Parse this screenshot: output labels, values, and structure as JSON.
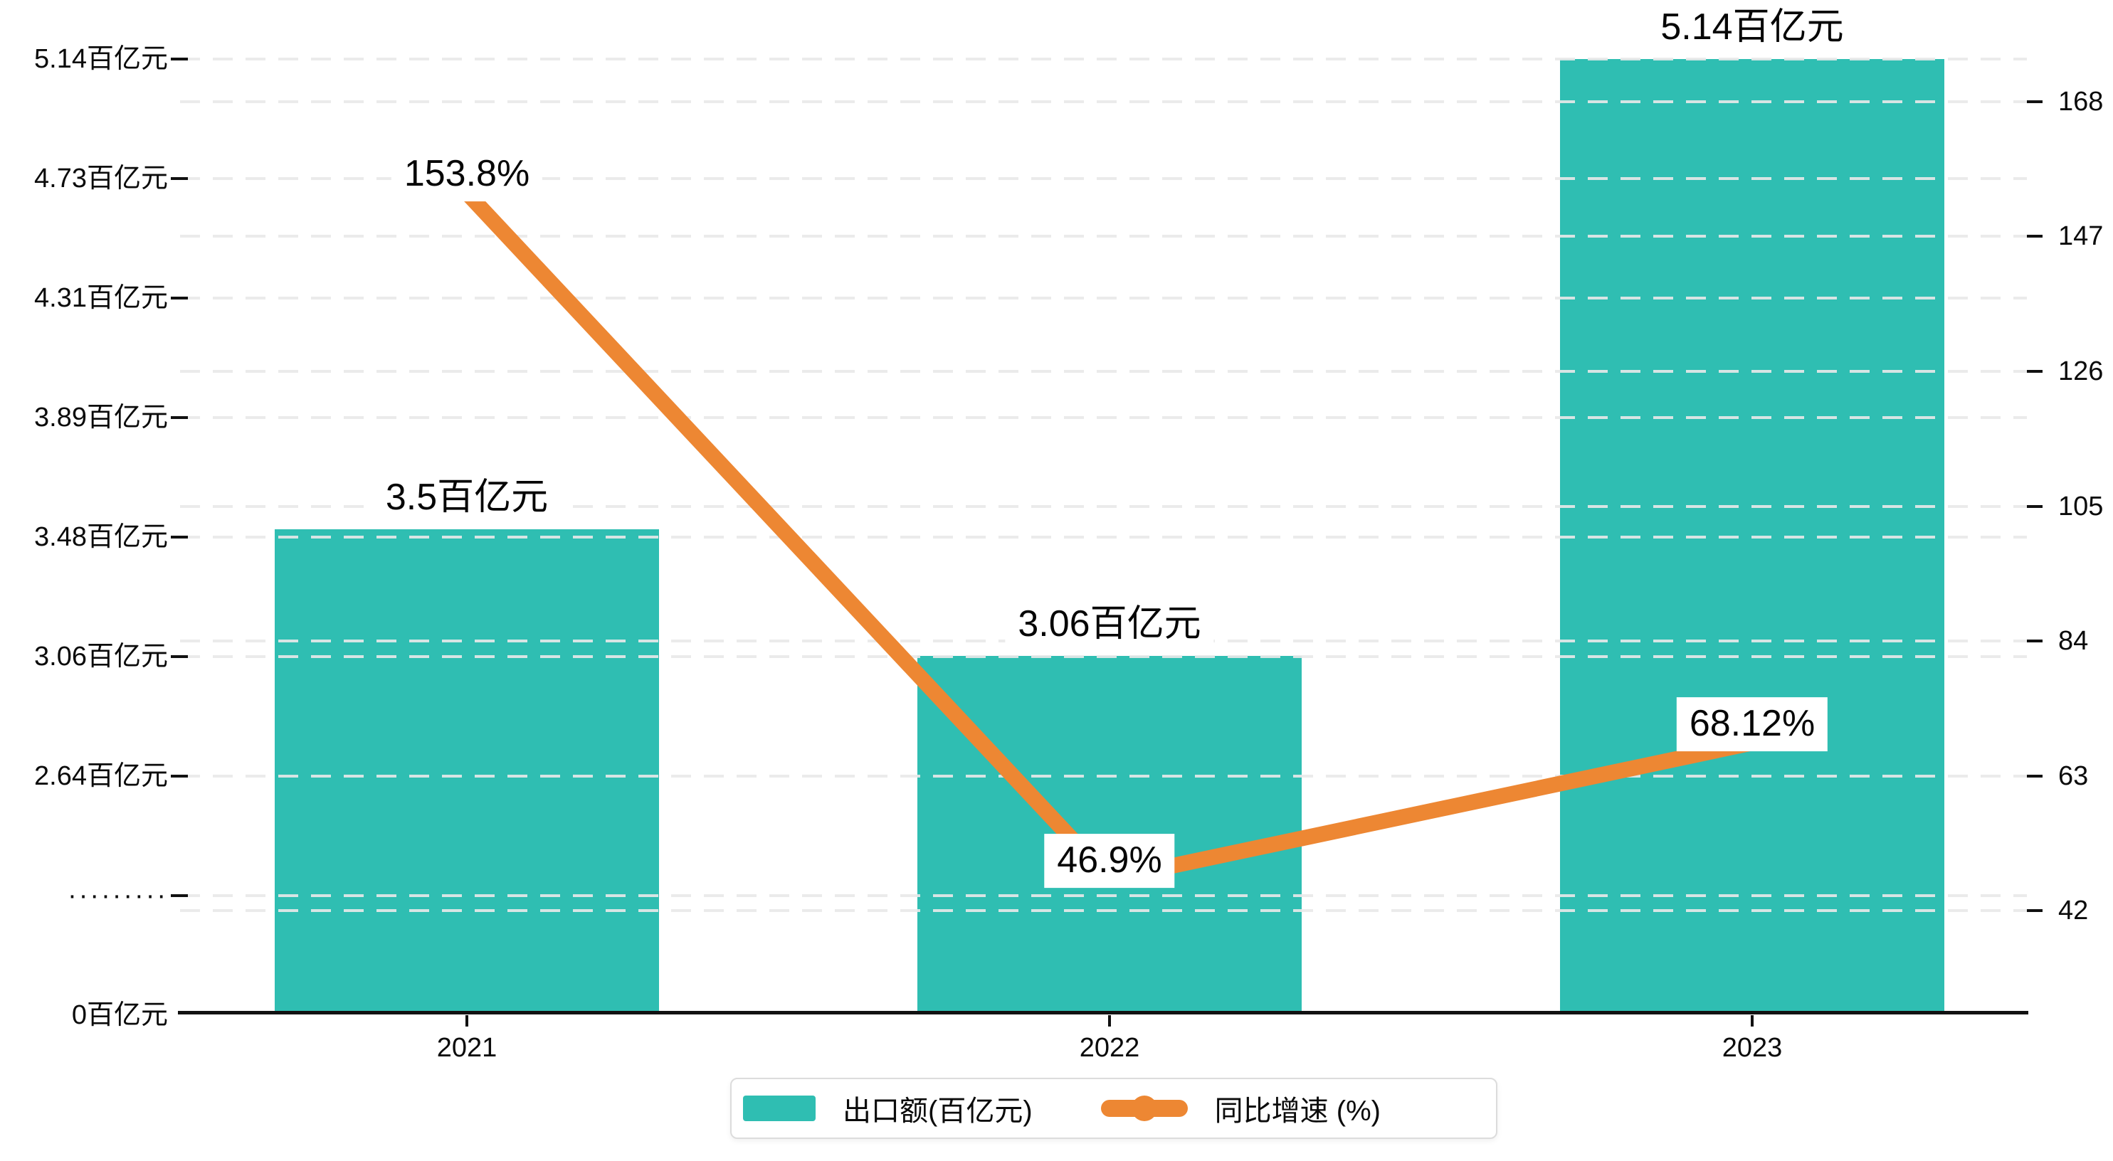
{
  "colors": {
    "bar_teal": "#2FBEB2",
    "line_orange": "#ED8733",
    "grid_gray": "#E9E9E9",
    "axis_black": "#111111",
    "text_black": "#0B0B0B"
  },
  "chart_data": {
    "type": "combo-bar-line",
    "categories": [
      "2021",
      "2022",
      "2023"
    ],
    "series": [
      {
        "name": "出口额(百亿元)",
        "type": "bar",
        "values": [
          3.5,
          3.06,
          5.14
        ],
        "data_labels": [
          "3.5百亿元",
          "3.06百亿元",
          "5.14百亿元"
        ],
        "color": "#2FBEB2"
      },
      {
        "name": "同比增速 (%)",
        "type": "line",
        "values": [
          153.8,
          46.9,
          68.12
        ],
        "data_labels": [
          "153.8%",
          "46.9%",
          "68.12%"
        ],
        "color": "#ED8733"
      }
    ],
    "left_axis": {
      "title": "",
      "tick_labels_bottom_to_top": [
        "0百亿元",
        "·········",
        "2.64百亿元",
        "3.06百亿元",
        "3.48百亿元",
        "3.89百亿元",
        "4.31百亿元",
        "4.73百亿元",
        "5.14百亿元"
      ],
      "broken_axis": true,
      "linear_segment_value_range": [
        2.64,
        5.14
      ],
      "linear_segment_tick_step": 0.4166667
    },
    "right_axis": {
      "tick_labels_bottom_to_top": [
        "42",
        "63",
        "84",
        "105",
        "126",
        "147",
        "168"
      ],
      "min": 42,
      "max": 168,
      "step": 21
    },
    "grid": {
      "horizontal_dashed_lines": true
    },
    "legend": {
      "position": "bottom-center",
      "items": [
        {
          "label": "出口额(百亿元)",
          "marker": "bar-swatch",
          "color": "#2FBEB2"
        },
        {
          "label": "同比增速 (%)",
          "marker": "line-with-dot",
          "color": "#ED8733"
        }
      ]
    }
  }
}
